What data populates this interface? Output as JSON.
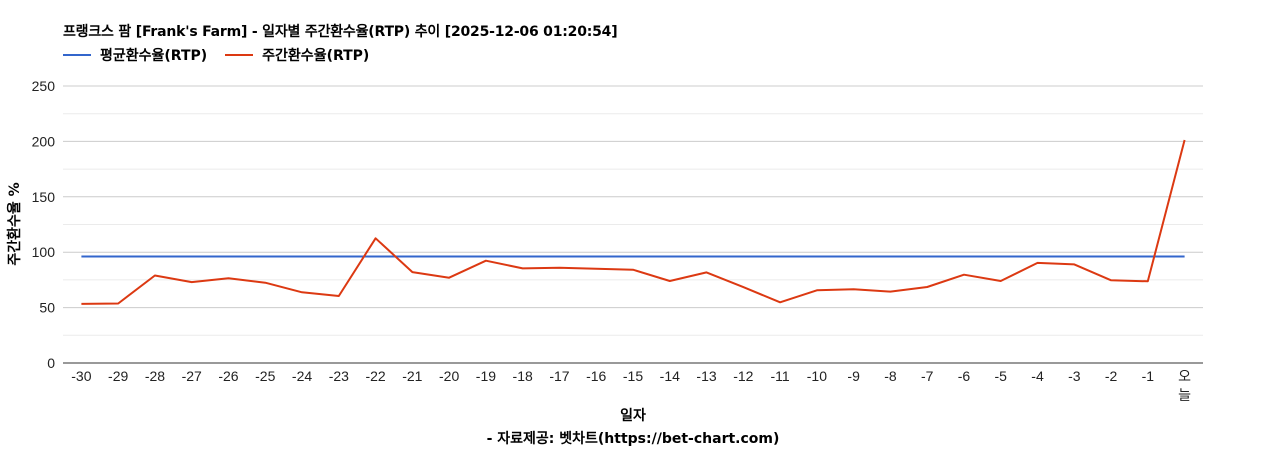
{
  "title": "프랭크스 팜 [Frank's Farm] - 일자별 주간환수율(RTP) 추이 [2025-12-06 01:20:54]",
  "legend": [
    {
      "label": "평균환수율(RTP)",
      "color": "#3366cc"
    },
    {
      "label": "주간환수율(RTP)",
      "color": "#dc3912"
    }
  ],
  "axes": {
    "ylabel": "주간환수율 %",
    "xlabel": "일자"
  },
  "source": "- 자료제공: 벳차트(https://bet-chart.com)",
  "chart_data": {
    "type": "line",
    "title": "프랭크스 팜 [Frank's Farm] - 일자별 주간환수율(RTP) 추이 [2025-12-06 01:20:54]",
    "xlabel": "일자",
    "ylabel": "주간환수율 %",
    "ylim": [
      0,
      250
    ],
    "yticks": [
      0,
      50,
      100,
      150,
      200,
      250
    ],
    "grid": true,
    "legend_position": "top",
    "categories": [
      "-30",
      "-29",
      "-28",
      "-27",
      "-26",
      "-25",
      "-24",
      "-23",
      "-22",
      "-21",
      "-20",
      "-19",
      "-18",
      "-17",
      "-16",
      "-15",
      "-14",
      "-13",
      "-12",
      "-11",
      "-10",
      "-9",
      "-8",
      "-7",
      "-6",
      "-5",
      "-4",
      "-3",
      "-2",
      "-1",
      "오늘"
    ],
    "series": [
      {
        "name": "평균환수율(RTP)",
        "color": "#3366cc",
        "values": [
          96.1,
          96.1,
          96.1,
          96.1,
          96.1,
          96.1,
          96.1,
          96.1,
          96.1,
          96.1,
          96.1,
          96.1,
          96.1,
          96.1,
          96.1,
          96.1,
          96.1,
          96.1,
          96.1,
          96.1,
          96.1,
          96.1,
          96.1,
          96.1,
          96.1,
          96.1,
          96.1,
          96.1,
          96.1,
          96.1,
          96.1
        ]
      },
      {
        "name": "주간환수율(RTP)",
        "color": "#dc3912",
        "values": [
          53.3,
          53.7,
          79.0,
          73.0,
          76.4,
          72.5,
          63.8,
          60.5,
          112.5,
          82.0,
          77.0,
          92.3,
          85.4,
          86.0,
          85.1,
          84.2,
          74.0,
          81.8,
          68.5,
          54.8,
          65.6,
          66.5,
          64.4,
          68.6,
          79.7,
          74.0,
          90.3,
          89.0,
          74.6,
          73.7,
          201.3
        ]
      }
    ],
    "annotations": [
      "- 자료제공: 벳차트(https://bet-chart.com)"
    ]
  }
}
